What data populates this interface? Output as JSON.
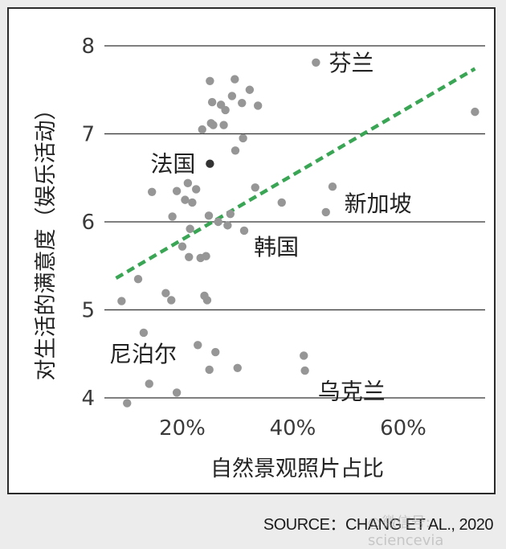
{
  "source": "SOURCE：CHANG ET AL., 2020",
  "watermark": "微信号: sciencevia",
  "chart_data": {
    "type": "scatter",
    "title": "",
    "xlabel": "自然景观照片占比",
    "ylabel": "对生活的满意度（娱乐活动）",
    "xlim": [
      0.06,
      0.76
    ],
    "ylim": [
      3.9,
      8.2
    ],
    "xticks": [
      0.2,
      0.4,
      0.6
    ],
    "xtick_labels": [
      "20%",
      "40%",
      "60%"
    ],
    "yticks": [
      4,
      5,
      6,
      7,
      8
    ],
    "ytick_labels": [
      "4",
      "5",
      "6",
      "7",
      "8"
    ],
    "grid": "horizontal",
    "point_color": "#969696",
    "highlight_color": "#333333",
    "trend_color": "#3aa655",
    "trendline": {
      "x": [
        0.08,
        0.73
      ],
      "y": [
        5.36,
        7.74
      ]
    },
    "points": [
      {
        "x": 0.09,
        "y": 5.1
      },
      {
        "x": 0.1,
        "y": 3.94
      },
      {
        "x": 0.12,
        "y": 5.35
      },
      {
        "x": 0.13,
        "y": 4.74
      },
      {
        "x": 0.14,
        "y": 4.16
      },
      {
        "x": 0.145,
        "y": 6.34
      },
      {
        "x": 0.17,
        "y": 5.19
      },
      {
        "x": 0.18,
        "y": 5.11
      },
      {
        "x": 0.182,
        "y": 6.06
      },
      {
        "x": 0.19,
        "y": 6.35
      },
      {
        "x": 0.19,
        "y": 4.06
      },
      {
        "x": 0.2,
        "y": 5.72
      },
      {
        "x": 0.205,
        "y": 6.25
      },
      {
        "x": 0.21,
        "y": 6.44
      },
      {
        "x": 0.212,
        "y": 5.6
      },
      {
        "x": 0.214,
        "y": 5.92
      },
      {
        "x": 0.218,
        "y": 6.22
      },
      {
        "x": 0.225,
        "y": 6.37
      },
      {
        "x": 0.228,
        "y": 4.6
      },
      {
        "x": 0.233,
        "y": 5.59
      },
      {
        "x": 0.236,
        "y": 7.05
      },
      {
        "x": 0.24,
        "y": 5.16
      },
      {
        "x": 0.243,
        "y": 5.61
      },
      {
        "x": 0.245,
        "y": 5.11
      },
      {
        "x": 0.248,
        "y": 6.07
      },
      {
        "x": 0.249,
        "y": 4.32
      },
      {
        "x": 0.25,
        "y": 7.6
      },
      {
        "x": 0.252,
        "y": 7.12
      },
      {
        "x": 0.254,
        "y": 7.36
      },
      {
        "x": 0.256,
        "y": 7.1
      },
      {
        "x": 0.26,
        "y": 4.52
      },
      {
        "x": 0.265,
        "y": 6.0
      },
      {
        "x": 0.27,
        "y": 7.33
      },
      {
        "x": 0.275,
        "y": 7.1
      },
      {
        "x": 0.278,
        "y": 7.27
      },
      {
        "x": 0.282,
        "y": 5.96
      },
      {
        "x": 0.287,
        "y": 6.09
      },
      {
        "x": 0.29,
        "y": 7.43
      },
      {
        "x": 0.295,
        "y": 7.62
      },
      {
        "x": 0.296,
        "y": 6.81
      },
      {
        "x": 0.3,
        "y": 4.34
      },
      {
        "x": 0.308,
        "y": 7.35
      },
      {
        "x": 0.31,
        "y": 6.95
      },
      {
        "x": 0.312,
        "y": 5.9
      },
      {
        "x": 0.322,
        "y": 7.5
      },
      {
        "x": 0.332,
        "y": 6.39
      },
      {
        "x": 0.337,
        "y": 7.32
      },
      {
        "x": 0.38,
        "y": 6.22
      },
      {
        "x": 0.42,
        "y": 4.48
      },
      {
        "x": 0.422,
        "y": 4.31
      },
      {
        "x": 0.442,
        "y": 7.81
      },
      {
        "x": 0.46,
        "y": 6.11
      },
      {
        "x": 0.472,
        "y": 6.4
      },
      {
        "x": 0.73,
        "y": 7.25
      }
    ],
    "highlight_points": [
      {
        "x": 0.25,
        "y": 6.66
      }
    ],
    "annotations": [
      {
        "text": "芬兰",
        "x": 0.445,
        "y": 7.81
      },
      {
        "text": "法国",
        "x": 0.25,
        "y": 6.66
      },
      {
        "text": "新加坡",
        "x": 0.47,
        "y": 6.21
      },
      {
        "text": "韩国",
        "x": 0.315,
        "y": 5.9
      },
      {
        "text": "尼泊尔",
        "x": 0.13,
        "y": 4.51
      },
      {
        "text": "乌克兰",
        "x": 0.425,
        "y": 4.28
      }
    ]
  }
}
